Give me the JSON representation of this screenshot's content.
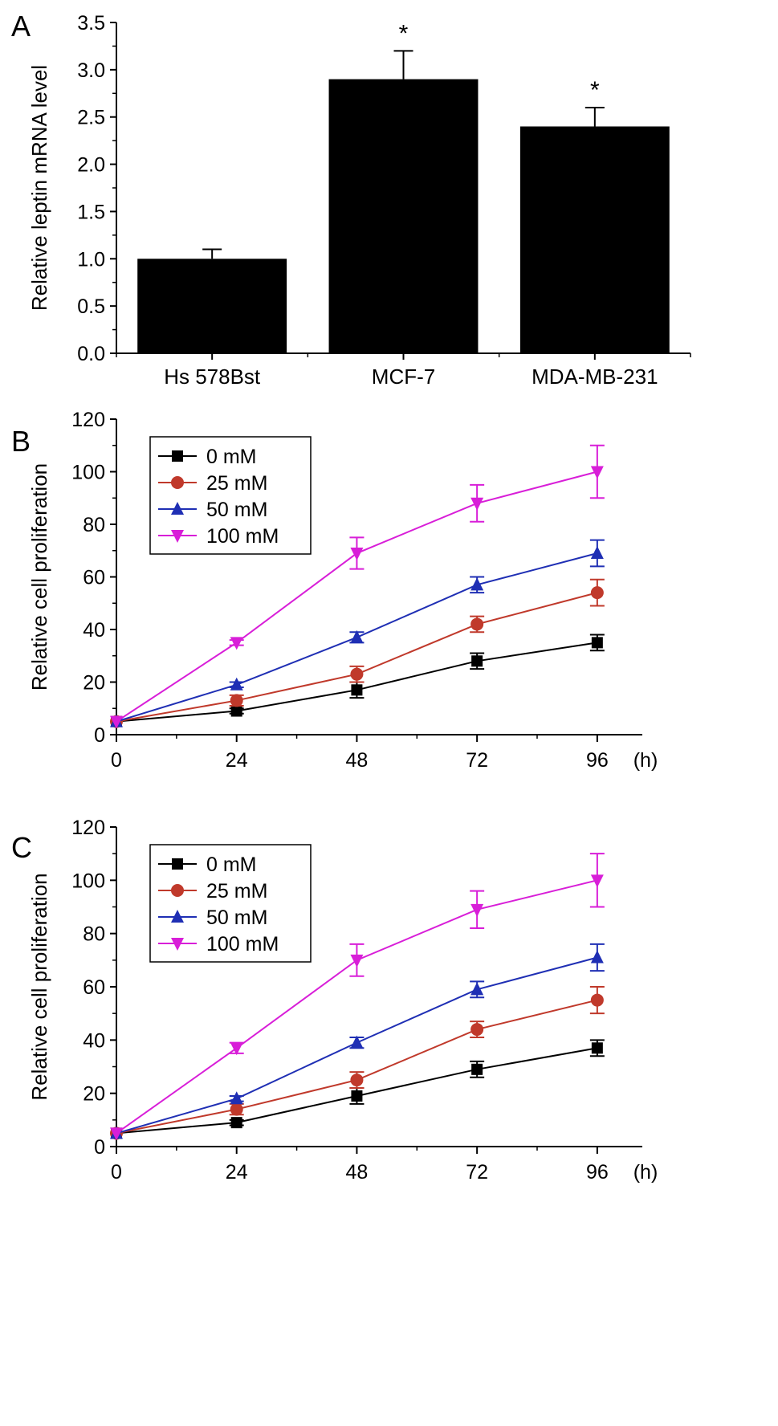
{
  "chart_data": [
    {
      "panel": "A",
      "type": "bar",
      "ylabel": "Relative leptin mRNA level",
      "ylim": [
        0,
        3.5
      ],
      "yticks": [
        "0.0",
        "0.5",
        "1.0",
        "1.5",
        "2.0",
        "2.5",
        "3.0",
        "3.5"
      ],
      "categories": [
        "Hs 578Bst",
        "MCF-7",
        "MDA-MB-231"
      ],
      "values": [
        1.0,
        2.9,
        2.4
      ],
      "errors": [
        0.1,
        0.3,
        0.2
      ],
      "annotations": [
        "",
        "*",
        "*"
      ],
      "bar_color": "#000000"
    },
    {
      "panel": "B",
      "type": "line",
      "ylabel": "Relative cell proliferation",
      "xunit": "(h)",
      "xlim": [
        0,
        105
      ],
      "ylim": [
        0,
        120
      ],
      "xticks": [
        "0",
        "24",
        "48",
        "72",
        "96"
      ],
      "yticks": [
        "0",
        "20",
        "40",
        "60",
        "80",
        "100",
        "120"
      ],
      "legend_position": "top-left",
      "x": [
        0,
        24,
        48,
        72,
        96
      ],
      "series": [
        {
          "name": "0 mM",
          "color": "#000000",
          "marker": "square",
          "values": [
            5,
            9,
            17,
            28,
            35
          ],
          "errors": [
            0,
            1,
            3,
            3,
            3
          ]
        },
        {
          "name": "25 mM",
          "color": "#c0392b",
          "marker": "diamond",
          "values": [
            5,
            13,
            23,
            42,
            54
          ],
          "errors": [
            0,
            2,
            3,
            3,
            5
          ]
        },
        {
          "name": "50 mM",
          "color": "#1f2fb4",
          "marker": "triangle-up",
          "values": [
            5,
            19,
            37,
            57,
            69
          ],
          "errors": [
            0,
            1,
            2,
            3,
            5
          ]
        },
        {
          "name": "100 mM",
          "color": "#d81ed8",
          "marker": "triangle-down",
          "values": [
            5,
            35,
            69,
            88,
            100
          ],
          "errors": [
            0,
            1,
            6,
            7,
            10
          ]
        }
      ]
    },
    {
      "panel": "C",
      "type": "line",
      "ylabel": "Relative cell proliferation",
      "xunit": "(h)",
      "xlim": [
        0,
        105
      ],
      "ylim": [
        0,
        120
      ],
      "xticks": [
        "0",
        "24",
        "48",
        "72",
        "96"
      ],
      "yticks": [
        "0",
        "20",
        "40",
        "60",
        "80",
        "100",
        "120"
      ],
      "legend_position": "top-left",
      "x": [
        0,
        24,
        48,
        72,
        96
      ],
      "series": [
        {
          "name": "0 mM",
          "color": "#000000",
          "marker": "square",
          "values": [
            5,
            9,
            19,
            29,
            37
          ],
          "errors": [
            0,
            1,
            3,
            3,
            3
          ]
        },
        {
          "name": "25 mM",
          "color": "#c0392b",
          "marker": "diamond",
          "values": [
            5,
            14,
            25,
            44,
            55
          ],
          "errors": [
            0,
            2,
            3,
            3,
            5
          ]
        },
        {
          "name": "50 mM",
          "color": "#1f2fb4",
          "marker": "triangle-up",
          "values": [
            5,
            18,
            39,
            59,
            71
          ],
          "errors": [
            0,
            1,
            2,
            3,
            5
          ]
        },
        {
          "name": "100 mM",
          "color": "#d81ed8",
          "marker": "triangle-down",
          "values": [
            5,
            37,
            70,
            89,
            100
          ],
          "errors": [
            0,
            2,
            6,
            7,
            10
          ]
        }
      ]
    }
  ]
}
